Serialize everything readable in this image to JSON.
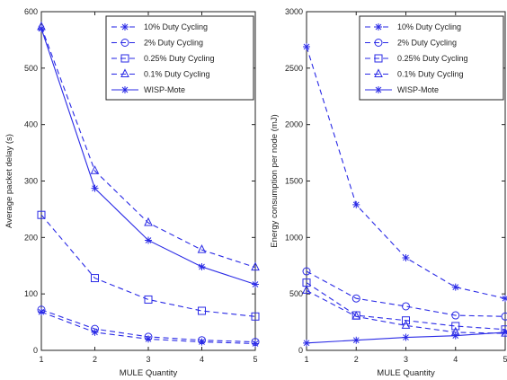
{
  "chart_data": [
    {
      "type": "line",
      "xlabel": "MULE Quantity",
      "ylabel": "Average packet delay (s)",
      "x": [
        1,
        2,
        3,
        4,
        5
      ],
      "xlim": [
        1,
        5
      ],
      "ylim": [
        0,
        600
      ],
      "xticks": [
        "1",
        "2",
        "3",
        "4",
        "5"
      ],
      "yticks": [
        "0",
        "100",
        "200",
        "300",
        "400",
        "500",
        "600"
      ],
      "grid": false,
      "legend_position": "top-right",
      "series": [
        {
          "name": "10% Duty Cycling",
          "marker": "star",
          "dash": "dashed",
          "values": [
            68,
            32,
            20,
            15,
            12
          ]
        },
        {
          "name": "2% Duty Cycling",
          "marker": "circle",
          "dash": "dashed",
          "values": [
            72,
            38,
            24,
            18,
            15
          ]
        },
        {
          "name": "0.25% Duty Cycling",
          "marker": "square",
          "dash": "dashed",
          "values": [
            240,
            128,
            90,
            70,
            60
          ]
        },
        {
          "name": "0.1% Duty Cycling",
          "marker": "triangle",
          "dash": "dashed",
          "values": [
            573,
            318,
            226,
            178,
            147
          ]
        },
        {
          "name": "WISP-Mote",
          "marker": "star",
          "dash": "solid",
          "values": [
            570,
            287,
            195,
            148,
            117
          ]
        }
      ]
    },
    {
      "type": "line",
      "xlabel": "MULE Quantity",
      "ylabel": "Energy consumption per node (mJ)",
      "x": [
        1,
        2,
        3,
        4,
        5
      ],
      "xlim": [
        1,
        5
      ],
      "ylim": [
        0,
        3000
      ],
      "xticks": [
        "1",
        "2",
        "3",
        "4",
        "5"
      ],
      "yticks": [
        "0",
        "500",
        "1000",
        "1500",
        "2000",
        "2500",
        "3000"
      ],
      "grid": false,
      "legend_position": "top-right",
      "series": [
        {
          "name": "10% Duty Cycling",
          "marker": "star",
          "dash": "dashed",
          "values": [
            2690,
            1290,
            820,
            560,
            460
          ]
        },
        {
          "name": "2% Duty Cycling",
          "marker": "circle",
          "dash": "dashed",
          "values": [
            700,
            460,
            390,
            310,
            300
          ]
        },
        {
          "name": "0.25% Duty Cycling",
          "marker": "square",
          "dash": "dashed",
          "values": [
            600,
            310,
            265,
            215,
            185
          ]
        },
        {
          "name": "0.1% Duty Cycling",
          "marker": "triangle",
          "dash": "dashed",
          "values": [
            530,
            300,
            220,
            160,
            150
          ]
        },
        {
          "name": "WISP-Mote",
          "marker": "star",
          "dash": "solid",
          "values": [
            65,
            90,
            115,
            130,
            160
          ]
        }
      ]
    }
  ],
  "style": {
    "line_color": "#2a2ae6",
    "axis_color": "#222222",
    "background": "#ffffff"
  }
}
